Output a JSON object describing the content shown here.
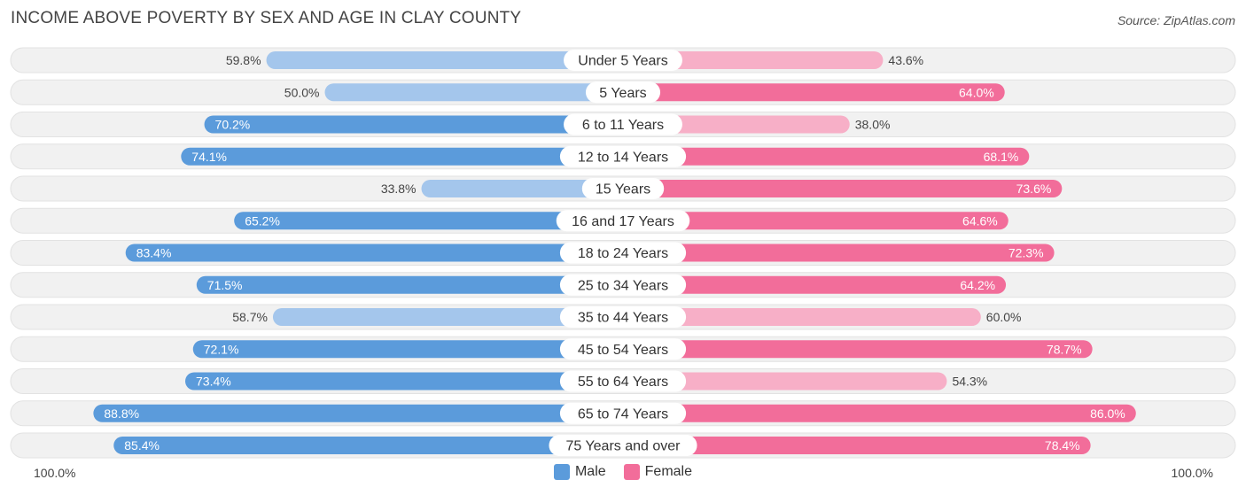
{
  "title": "INCOME ABOVE POVERTY BY SEX AND AGE IN CLAY COUNTY",
  "source": "Source: ZipAtlas.com",
  "colors": {
    "male_strong": "#5b9bdb",
    "male_light": "#a4c6ec",
    "female_strong": "#f26d9a",
    "female_light": "#f7afc7",
    "track": "#f1f1f1"
  },
  "chart_data": {
    "type": "bar",
    "orientation": "horizontal-diverging",
    "title": "INCOME ABOVE POVERTY BY SEX AND AGE IN CLAY COUNTY",
    "categories": [
      "Under 5 Years",
      "5 Years",
      "6 to 11 Years",
      "12 to 14 Years",
      "15 Years",
      "16 and 17 Years",
      "18 to 24 Years",
      "25 to 34 Years",
      "35 to 44 Years",
      "45 to 54 Years",
      "55 to 64 Years",
      "65 to 74 Years",
      "75 Years and over"
    ],
    "series": [
      {
        "name": "Male",
        "values": [
          59.8,
          50.0,
          70.2,
          74.1,
          33.8,
          65.2,
          83.4,
          71.5,
          58.7,
          72.1,
          73.4,
          88.8,
          85.4
        ],
        "labels": [
          "59.8%",
          "50.0%",
          "70.2%",
          "74.1%",
          "33.8%",
          "65.2%",
          "83.4%",
          "71.5%",
          "58.7%",
          "72.1%",
          "73.4%",
          "88.8%",
          "85.4%"
        ]
      },
      {
        "name": "Female",
        "values": [
          43.6,
          64.0,
          38.0,
          68.1,
          73.6,
          64.6,
          72.3,
          64.2,
          60.0,
          78.7,
          54.3,
          86.0,
          78.4
        ],
        "labels": [
          "43.6%",
          "64.0%",
          "38.0%",
          "68.1%",
          "73.6%",
          "64.6%",
          "72.3%",
          "64.2%",
          "60.0%",
          "78.7%",
          "54.3%",
          "86.0%",
          "78.4%"
        ]
      }
    ],
    "xlim": [
      0,
      100
    ],
    "axis_left_label": "100.0%",
    "axis_right_label": "100.0%",
    "legend": [
      "Male",
      "Female"
    ],
    "legend_position": "bottom-center"
  }
}
